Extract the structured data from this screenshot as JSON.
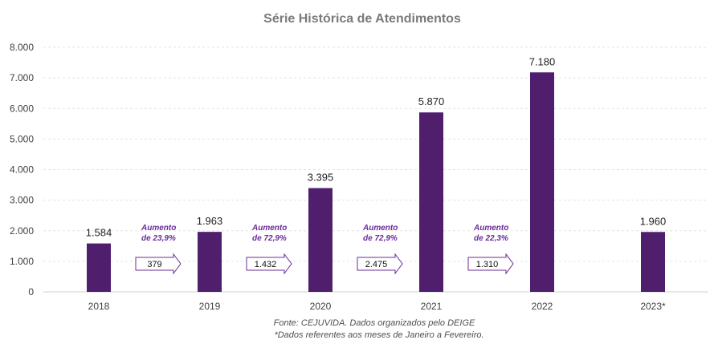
{
  "chart_data": {
    "type": "bar",
    "title": "Série Histórica de Atendimentos",
    "categories": [
      "2018",
      "2019",
      "2020",
      "2021",
      "2022",
      "2023*"
    ],
    "values": [
      1584,
      1963,
      3395,
      5870,
      7180,
      1960
    ],
    "value_labels": [
      "1.584",
      "1.963",
      "3.395",
      "5.870",
      "7.180",
      "1.960"
    ],
    "ylim": [
      0,
      8000
    ],
    "yticks": [
      0,
      1000,
      2000,
      3000,
      4000,
      5000,
      6000,
      7000,
      8000
    ],
    "ytick_labels": [
      "0",
      "1.000",
      "2.000",
      "3.000",
      "4.000",
      "5.000",
      "6.000",
      "7.000",
      "8.000"
    ],
    "grid": true,
    "bar_color": "#4f1f6e",
    "annotations": [
      {
        "between": [
          "2018",
          "2019"
        ],
        "text_line1": "Aumento",
        "text_line2": "de 23,9%",
        "arrow_label": "379"
      },
      {
        "between": [
          "2019",
          "2020"
        ],
        "text_line1": "Aumento",
        "text_line2": "de 72,9%",
        "arrow_label": "1.432"
      },
      {
        "between": [
          "2020",
          "2021"
        ],
        "text_line1": "Aumento",
        "text_line2": "de 72,9%",
        "arrow_label": "2.475"
      },
      {
        "between": [
          "2021",
          "2022"
        ],
        "text_line1": "Aumento",
        "text_line2": "de 22,3%",
        "arrow_label": "1.310"
      }
    ],
    "annotation_color": "#6b2b9a",
    "source": "Fonte: CEJUVIDA. Dados organizados pelo DEIGE",
    "footnote": "*Dados referentes aos meses de Janeiro a Fevereiro."
  }
}
